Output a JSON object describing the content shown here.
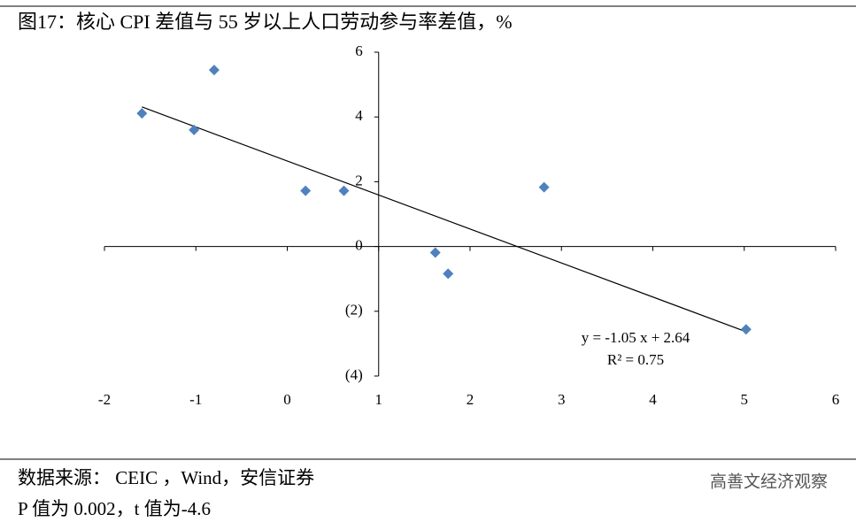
{
  "chart_data": {
    "type": "scatter",
    "title": "图17：核心 CPI 差值与 55 岁以上人口劳动参与率差值，%",
    "x": [
      -0.8,
      -1.59,
      -1.02,
      0.2,
      0.62,
      2.81,
      1.62,
      1.76,
      5.02
    ],
    "series": [
      {
        "color": "#4f81bd",
        "values": [
          5.45,
          4.11,
          3.6,
          1.72,
          1.72,
          1.83,
          -0.19,
          -0.84,
          -2.56
        ]
      }
    ],
    "xlim": [
      -2,
      6
    ],
    "xticks": [
      -2,
      -1,
      0,
      1,
      2,
      3,
      4,
      5,
      6
    ],
    "ylim": [
      -4,
      6
    ],
    "yticks": [
      {
        "value": -4,
        "label": "(4)"
      },
      {
        "value": -2,
        "label": "(2)"
      },
      0,
      2,
      4,
      6
    ],
    "y_axis_at_x": 1,
    "trendline": {
      "label": "y = -1.05 x + 2.64",
      "r2_label": "R² = 0.75",
      "slope": -1.05,
      "intercept": 2.64
    },
    "source": "数据来源： CEIC ，Wind，安信证券",
    "note": "P 值为 0.002，t 值为-4.6",
    "watermark": "高善文经济观察"
  }
}
